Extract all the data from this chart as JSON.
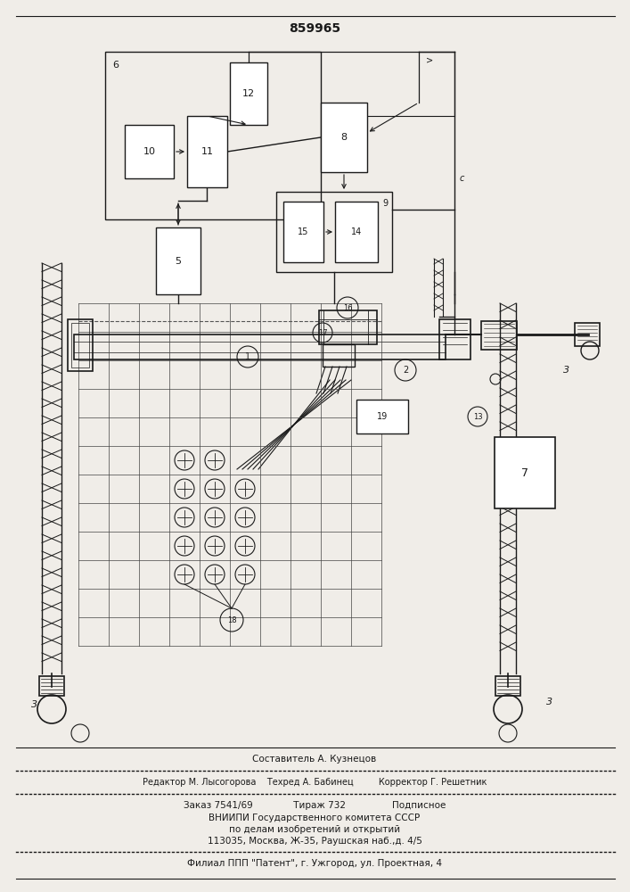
{
  "patent_number": "859965",
  "bg_color": "#f0ede8",
  "lc": "#1a1a1a",
  "footer_lines": [
    "Составитель А. Кузнецов",
    "Редактор М. Лысогорова    Техред А. Бабинец         Корректор Г. Решетник",
    "Заказ 7541/69              Тираж 732                Подписное",
    "ВНИИПИ Государственного комитета СССР",
    "по делам изобретений и открытий",
    "113035, Москва, Ж-35, Раушская наб.,д. 4/5",
    "Филиал ППП \"Патент\", г. Ужгород, ул. Проектная, 4"
  ]
}
